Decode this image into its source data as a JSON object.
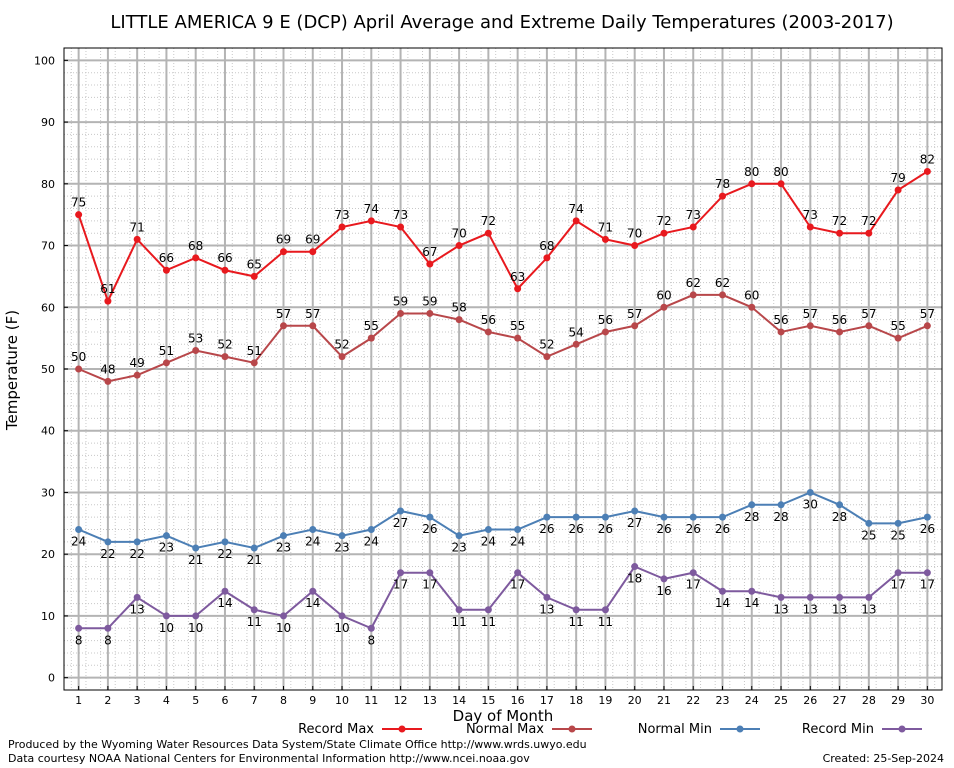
{
  "chart_data": {
    "type": "line",
    "title": "LITTLE AMERICA 9 E (DCP) April Average and Extreme Daily Temperatures (2003-2017)",
    "xlabel": "Day of Month",
    "ylabel": "Temperature (F)",
    "x": [
      1,
      2,
      3,
      4,
      5,
      6,
      7,
      8,
      9,
      10,
      11,
      12,
      13,
      14,
      15,
      16,
      17,
      18,
      19,
      20,
      21,
      22,
      23,
      24,
      25,
      26,
      27,
      28,
      29,
      30
    ],
    "xlim": [
      0.5,
      30.5
    ],
    "ylim": [
      -2,
      102
    ],
    "yticks": [
      0,
      10,
      20,
      30,
      40,
      50,
      60,
      70,
      80,
      90,
      100
    ],
    "grid": true,
    "legend_position": "bottom",
    "series": [
      {
        "name": "Record Max",
        "color": "#e8191e",
        "label_side": "above",
        "values": [
          75,
          61,
          71,
          66,
          68,
          66,
          65,
          69,
          69,
          73,
          74,
          73,
          67,
          70,
          72,
          63,
          68,
          74,
          71,
          70,
          72,
          73,
          78,
          80,
          80,
          73,
          72,
          72,
          79,
          82
        ]
      },
      {
        "name": "Normal Max",
        "color": "#b8474a",
        "label_side": "above",
        "values": [
          50,
          48,
          49,
          51,
          53,
          52,
          51,
          57,
          57,
          52,
          55,
          59,
          59,
          58,
          56,
          55,
          52,
          54,
          56,
          57,
          60,
          62,
          62,
          60,
          56,
          57,
          56,
          57,
          55,
          57
        ]
      },
      {
        "name": "Normal Min",
        "color": "#4c7fb5",
        "label_side": "below",
        "values": [
          24,
          22,
          22,
          23,
          21,
          22,
          21,
          23,
          24,
          23,
          24,
          27,
          26,
          23,
          24,
          24,
          26,
          26,
          26,
          27,
          26,
          26,
          26,
          28,
          28,
          30,
          28,
          25,
          25,
          26
        ]
      },
      {
        "name": "Record Min",
        "color": "#7e5a9e",
        "label_side": "below",
        "values": [
          8,
          8,
          13,
          10,
          10,
          14,
          11,
          10,
          14,
          10,
          8,
          17,
          17,
          11,
          11,
          17,
          13,
          11,
          11,
          18,
          16,
          17,
          14,
          14,
          13,
          13,
          13,
          13,
          17,
          17
        ]
      }
    ]
  },
  "footer": {
    "produced_by": "Produced by the Wyoming Water Resources Data System/State Climate Office http://www.wrds.uwyo.edu",
    "data_courtesy": "Data courtesy NOAA National Centers for Environmental Information http://www.ncei.noaa.gov",
    "created": "Created:  25-Sep-2024"
  }
}
